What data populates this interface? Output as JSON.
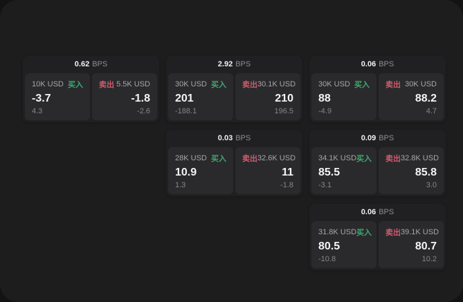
{
  "labels": {
    "buy": "买入",
    "sell": "卖出",
    "bps_unit": "BPS"
  },
  "colors": {
    "page_bg": "#131313",
    "window_bg": "#1d1d1e",
    "card_bg": "#202022",
    "panel_bg": "#2a2a2c",
    "buy_text": "#3fa970",
    "sell_text": "#d05a6c"
  },
  "cards": [
    {
      "col": 1,
      "row": 1,
      "bps": "0.62",
      "buy": {
        "size": "10K USD",
        "price": "-3.7",
        "delta": "4.3"
      },
      "sell": {
        "size": "5.5K USD",
        "price": "-1.8",
        "delta": "-2.6"
      }
    },
    {
      "col": 2,
      "row": 1,
      "bps": "2.92",
      "buy": {
        "size": "30K USD",
        "price": "201",
        "delta": "-188.1"
      },
      "sell": {
        "size": "30.1K USD",
        "price": "210",
        "delta": "196.5"
      }
    },
    {
      "col": 3,
      "row": 1,
      "bps": "0.06",
      "buy": {
        "size": "30K USD",
        "price": "88",
        "delta": "-4.9"
      },
      "sell": {
        "size": "30K USD",
        "price": "88.2",
        "delta": "4.7"
      }
    },
    {
      "col": 2,
      "row": 2,
      "bps": "0.03",
      "buy": {
        "size": "28K USD",
        "price": "10.9",
        "delta": "1.3"
      },
      "sell": {
        "size": "32.6K USD",
        "price": "11",
        "delta": "-1.8"
      }
    },
    {
      "col": 3,
      "row": 2,
      "bps": "0.09",
      "buy": {
        "size": "34.1K USD",
        "price": "85.5",
        "delta": "-3.1"
      },
      "sell": {
        "size": "32.8K USD",
        "price": "85.8",
        "delta": "3.0"
      }
    },
    {
      "col": 3,
      "row": 3,
      "bps": "0.06",
      "buy": {
        "size": "31.8K USD",
        "price": "80.5",
        "delta": "-10.8"
      },
      "sell": {
        "size": "39.1K USD",
        "price": "80.7",
        "delta": "10.2"
      }
    }
  ]
}
